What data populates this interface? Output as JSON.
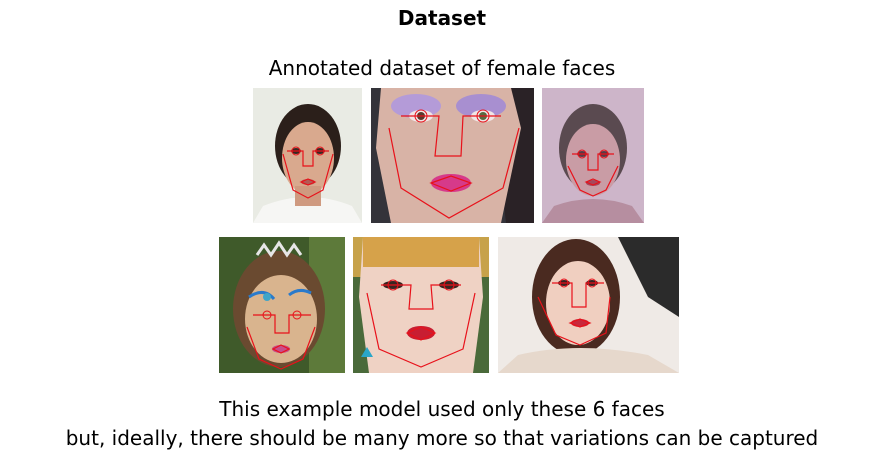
{
  "slide": {
    "title": "Dataset",
    "subtitle": "Annotated dataset of female faces",
    "caption_line1": "This example model used only these 6 faces",
    "caption_line2": "but, ideally, there should be many more so that variations can be captured"
  },
  "colors": {
    "annotation": "#e8111a",
    "background": "#ffffff"
  }
}
